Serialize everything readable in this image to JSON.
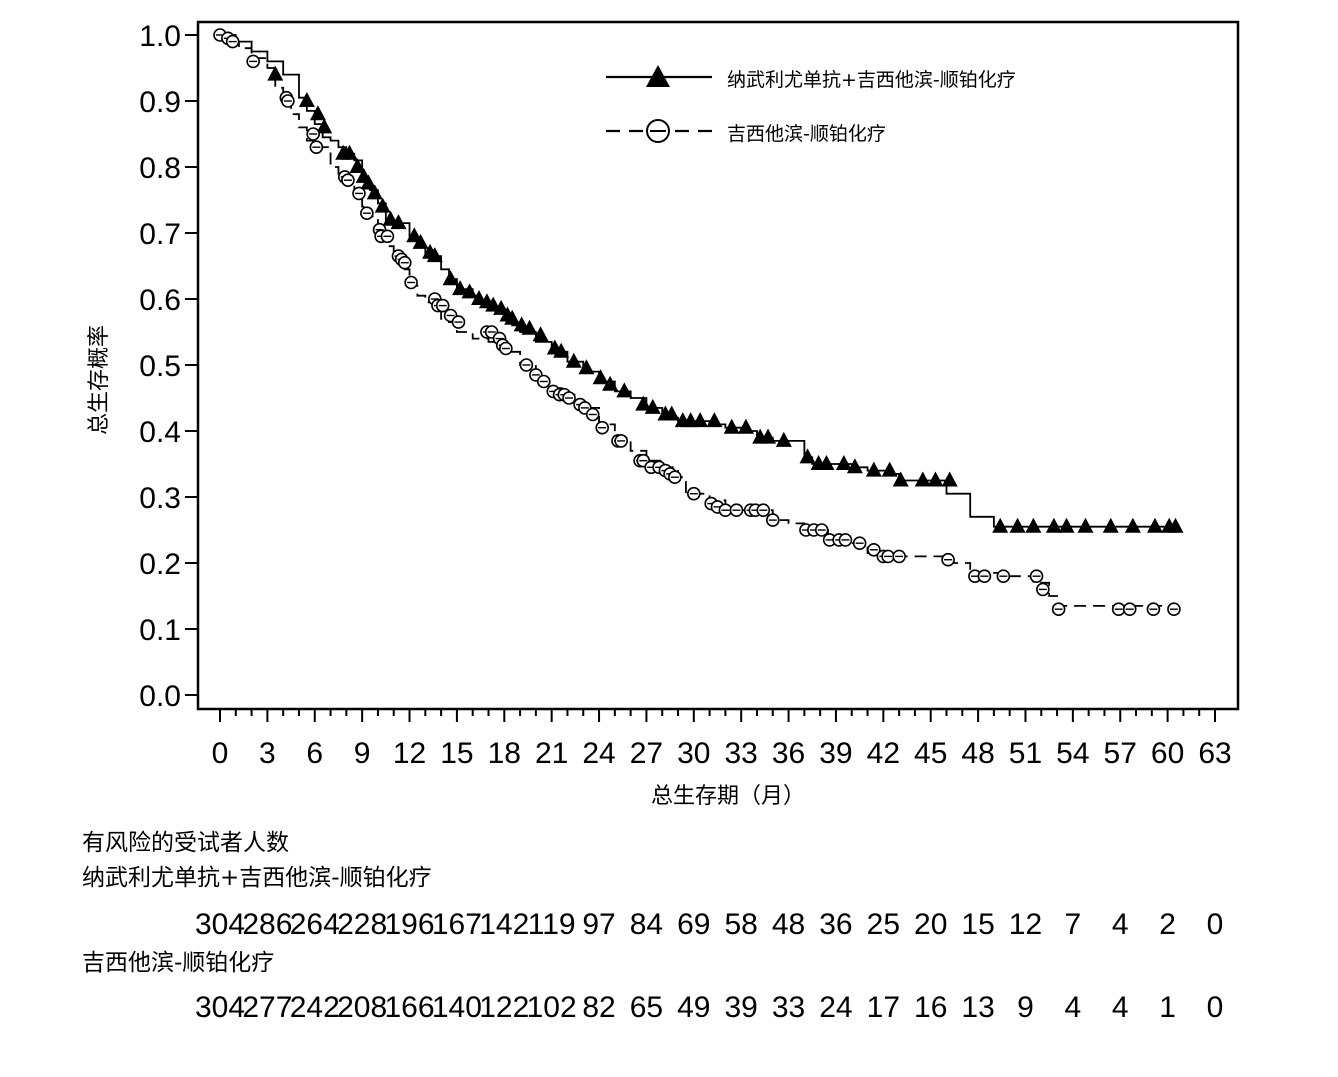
{
  "chart_data": {
    "type": "line",
    "subtype": "kaplan-meier",
    "xlabel": "总生存期（月）",
    "ylabel": "总生存概率",
    "xlim": [
      0,
      63
    ],
    "ylim": [
      0.0,
      1.0
    ],
    "x_ticks": [
      "0",
      "3",
      "6",
      "9",
      "12",
      "15",
      "18",
      "21",
      "24",
      "27",
      "30",
      "33",
      "36",
      "39",
      "42",
      "45",
      "48",
      "51",
      "54",
      "57",
      "60",
      "63"
    ],
    "y_ticks": [
      "0.0",
      "0.1",
      "0.2",
      "0.3",
      "0.4",
      "0.5",
      "0.6",
      "0.7",
      "0.8",
      "0.9",
      "1.0"
    ],
    "grid": false,
    "legend_position": "top-right",
    "series": [
      {
        "name": "纳武利尤单抗+吉西他滨-顺铂化疗",
        "line_style": "solid",
        "marker": "filled-triangle",
        "color": "#000000",
        "steps": [
          [
            0,
            1.0
          ],
          [
            1,
            0.99
          ],
          [
            2,
            0.975
          ],
          [
            3,
            0.96
          ],
          [
            4,
            0.94
          ],
          [
            5,
            0.905
          ],
          [
            5.5,
            0.885
          ],
          [
            6,
            0.865
          ],
          [
            6.5,
            0.845
          ],
          [
            7,
            0.84
          ],
          [
            7.5,
            0.83
          ],
          [
            8,
            0.82
          ],
          [
            8.5,
            0.81
          ],
          [
            9,
            0.78
          ],
          [
            9.5,
            0.765
          ],
          [
            10,
            0.745
          ],
          [
            10.5,
            0.72
          ],
          [
            11,
            0.715
          ],
          [
            12,
            0.69
          ],
          [
            12.5,
            0.68
          ],
          [
            13,
            0.665
          ],
          [
            14,
            0.645
          ],
          [
            14.5,
            0.63
          ],
          [
            15,
            0.615
          ],
          [
            16,
            0.605
          ],
          [
            16.5,
            0.595
          ],
          [
            17,
            0.585
          ],
          [
            18,
            0.57
          ],
          [
            18.5,
            0.56
          ],
          [
            19,
            0.55
          ],
          [
            20,
            0.535
          ],
          [
            21,
            0.52
          ],
          [
            22,
            0.505
          ],
          [
            23,
            0.49
          ],
          [
            24,
            0.475
          ],
          [
            25,
            0.46
          ],
          [
            26,
            0.45
          ],
          [
            27,
            0.435
          ],
          [
            28,
            0.42
          ],
          [
            29,
            0.415
          ],
          [
            31,
            0.41
          ],
          [
            32,
            0.405
          ],
          [
            33,
            0.4
          ],
          [
            34,
            0.39
          ],
          [
            35,
            0.385
          ],
          [
            37,
            0.36
          ],
          [
            37.5,
            0.35
          ],
          [
            40,
            0.345
          ],
          [
            41,
            0.34
          ],
          [
            42.5,
            0.335
          ],
          [
            43,
            0.325
          ],
          [
            46,
            0.305
          ],
          [
            47.5,
            0.27
          ],
          [
            49,
            0.255
          ],
          [
            60.5,
            0.255
          ]
        ],
        "censored": [
          [
            3.5,
            0.94
          ],
          [
            5.5,
            0.9
          ],
          [
            6.2,
            0.88
          ],
          [
            6.6,
            0.86
          ],
          [
            7.8,
            0.82
          ],
          [
            8.2,
            0.82
          ],
          [
            8.7,
            0.8
          ],
          [
            9.1,
            0.785
          ],
          [
            9.4,
            0.775
          ],
          [
            9.8,
            0.76
          ],
          [
            10.3,
            0.74
          ],
          [
            10.8,
            0.72
          ],
          [
            11.3,
            0.715
          ],
          [
            12.3,
            0.695
          ],
          [
            12.7,
            0.685
          ],
          [
            13.3,
            0.67
          ],
          [
            13.6,
            0.665
          ],
          [
            14.6,
            0.63
          ],
          [
            15.2,
            0.615
          ],
          [
            15.8,
            0.61
          ],
          [
            16.4,
            0.6
          ],
          [
            16.9,
            0.595
          ],
          [
            17.3,
            0.59
          ],
          [
            17.8,
            0.585
          ],
          [
            18.2,
            0.575
          ],
          [
            18.5,
            0.57
          ],
          [
            19.1,
            0.56
          ],
          [
            19.6,
            0.555
          ],
          [
            20.3,
            0.545
          ],
          [
            21.2,
            0.525
          ],
          [
            21.6,
            0.52
          ],
          [
            22.4,
            0.505
          ],
          [
            23.2,
            0.495
          ],
          [
            24.1,
            0.48
          ],
          [
            24.7,
            0.47
          ],
          [
            25.6,
            0.46
          ],
          [
            26.8,
            0.44
          ],
          [
            27.4,
            0.435
          ],
          [
            28.2,
            0.425
          ],
          [
            28.6,
            0.425
          ],
          [
            29.3,
            0.415
          ],
          [
            29.8,
            0.415
          ],
          [
            30.4,
            0.415
          ],
          [
            31.3,
            0.415
          ],
          [
            32.4,
            0.405
          ],
          [
            33.3,
            0.405
          ],
          [
            34.2,
            0.39
          ],
          [
            34.7,
            0.39
          ],
          [
            35.7,
            0.385
          ],
          [
            37.2,
            0.36
          ],
          [
            37.9,
            0.35
          ],
          [
            38.4,
            0.35
          ],
          [
            39.5,
            0.35
          ],
          [
            40.2,
            0.345
          ],
          [
            41.4,
            0.34
          ],
          [
            42.4,
            0.34
          ],
          [
            43.1,
            0.325
          ],
          [
            44.5,
            0.325
          ],
          [
            45.3,
            0.325
          ],
          [
            46.2,
            0.325
          ],
          [
            49.4,
            0.255
          ],
          [
            50.5,
            0.255
          ],
          [
            51.5,
            0.255
          ],
          [
            52.8,
            0.255
          ],
          [
            53.6,
            0.255
          ],
          [
            54.8,
            0.255
          ],
          [
            56.4,
            0.255
          ],
          [
            57.8,
            0.255
          ],
          [
            59.2,
            0.255
          ],
          [
            60.1,
            0.255
          ],
          [
            60.5,
            0.255
          ]
        ]
      },
      {
        "name": "吉西他滨-顺铂化疗",
        "line_style": "dashed",
        "marker": "open-circle",
        "color": "#000000",
        "steps": [
          [
            0,
            1.0
          ],
          [
            0.6,
            0.99
          ],
          [
            1.2,
            0.98
          ],
          [
            2,
            0.965
          ],
          [
            3,
            0.95
          ],
          [
            3.5,
            0.92
          ],
          [
            4,
            0.905
          ],
          [
            4.5,
            0.88
          ],
          [
            5,
            0.86
          ],
          [
            5.5,
            0.84
          ],
          [
            6,
            0.83
          ],
          [
            7,
            0.8
          ],
          [
            7.5,
            0.79
          ],
          [
            8,
            0.78
          ],
          [
            8.5,
            0.76
          ],
          [
            9,
            0.74
          ],
          [
            9.5,
            0.725
          ],
          [
            10,
            0.7
          ],
          [
            10.5,
            0.68
          ],
          [
            11,
            0.66
          ],
          [
            11.5,
            0.645
          ],
          [
            12,
            0.62
          ],
          [
            12.5,
            0.605
          ],
          [
            13,
            0.595
          ],
          [
            13.5,
            0.585
          ],
          [
            14,
            0.57
          ],
          [
            14.5,
            0.565
          ],
          [
            15,
            0.55
          ],
          [
            16,
            0.54
          ],
          [
            17,
            0.535
          ],
          [
            18,
            0.52
          ],
          [
            19,
            0.5
          ],
          [
            20,
            0.49
          ],
          [
            20.5,
            0.475
          ],
          [
            21,
            0.465
          ],
          [
            22,
            0.455
          ],
          [
            22.5,
            0.44
          ],
          [
            23,
            0.435
          ],
          [
            24,
            0.41
          ],
          [
            25,
            0.39
          ],
          [
            26,
            0.37
          ],
          [
            27,
            0.355
          ],
          [
            28,
            0.345
          ],
          [
            29,
            0.33
          ],
          [
            29.5,
            0.305
          ],
          [
            31,
            0.295
          ],
          [
            32,
            0.285
          ],
          [
            33,
            0.28
          ],
          [
            35,
            0.265
          ],
          [
            36,
            0.26
          ],
          [
            37,
            0.25
          ],
          [
            38.5,
            0.235
          ],
          [
            39,
            0.23
          ],
          [
            41,
            0.215
          ],
          [
            42,
            0.21
          ],
          [
            44,
            0.21
          ],
          [
            46,
            0.2
          ],
          [
            47.5,
            0.185
          ],
          [
            49.5,
            0.18
          ],
          [
            51.5,
            0.17
          ],
          [
            52.5,
            0.15
          ],
          [
            53,
            0.135
          ],
          [
            60.5,
            0.135
          ]
        ],
        "censored": [
          [
            0,
            1.0
          ],
          [
            0.5,
            0.995
          ],
          [
            0.8,
            0.99
          ],
          [
            2.1,
            0.96
          ],
          [
            4.2,
            0.905
          ],
          [
            4.3,
            0.9
          ],
          [
            5.9,
            0.85
          ],
          [
            6.1,
            0.83
          ],
          [
            7.9,
            0.785
          ],
          [
            8.1,
            0.78
          ],
          [
            8.8,
            0.76
          ],
          [
            9.3,
            0.73
          ],
          [
            10.1,
            0.705
          ],
          [
            10.2,
            0.695
          ],
          [
            10.6,
            0.695
          ],
          [
            11.3,
            0.665
          ],
          [
            11.5,
            0.66
          ],
          [
            11.7,
            0.655
          ],
          [
            12.1,
            0.625
          ],
          [
            13.6,
            0.6
          ],
          [
            13.8,
            0.59
          ],
          [
            14.1,
            0.59
          ],
          [
            14.6,
            0.575
          ],
          [
            15.1,
            0.565
          ],
          [
            16.9,
            0.55
          ],
          [
            17.2,
            0.55
          ],
          [
            17.7,
            0.54
          ],
          [
            17.9,
            0.53
          ],
          [
            18.1,
            0.525
          ],
          [
            19.4,
            0.5
          ],
          [
            20.0,
            0.485
          ],
          [
            20.5,
            0.475
          ],
          [
            21.1,
            0.46
          ],
          [
            21.5,
            0.455
          ],
          [
            21.8,
            0.455
          ],
          [
            22.1,
            0.45
          ],
          [
            22.8,
            0.44
          ],
          [
            23.1,
            0.435
          ],
          [
            23.6,
            0.425
          ],
          [
            24.2,
            0.405
          ],
          [
            25.2,
            0.385
          ],
          [
            25.4,
            0.385
          ],
          [
            26.6,
            0.355
          ],
          [
            26.8,
            0.355
          ],
          [
            27.3,
            0.345
          ],
          [
            27.8,
            0.345
          ],
          [
            28.2,
            0.34
          ],
          [
            28.5,
            0.335
          ],
          [
            28.8,
            0.33
          ],
          [
            30.0,
            0.305
          ],
          [
            31.1,
            0.29
          ],
          [
            31.5,
            0.285
          ],
          [
            32.0,
            0.28
          ],
          [
            32.7,
            0.28
          ],
          [
            33.6,
            0.28
          ],
          [
            33.9,
            0.28
          ],
          [
            34.4,
            0.28
          ],
          [
            35.0,
            0.265
          ],
          [
            37.1,
            0.25
          ],
          [
            37.6,
            0.25
          ],
          [
            38.1,
            0.25
          ],
          [
            38.6,
            0.235
          ],
          [
            39.2,
            0.235
          ],
          [
            39.6,
            0.235
          ],
          [
            40.5,
            0.23
          ],
          [
            41.4,
            0.22
          ],
          [
            42.0,
            0.21
          ],
          [
            42.3,
            0.21
          ],
          [
            43.0,
            0.21
          ],
          [
            46.1,
            0.205
          ],
          [
            47.8,
            0.18
          ],
          [
            48.4,
            0.18
          ],
          [
            49.6,
            0.18
          ],
          [
            51.7,
            0.18
          ],
          [
            52.1,
            0.16
          ],
          [
            53.1,
            0.13
          ],
          [
            56.9,
            0.13
          ],
          [
            57.6,
            0.13
          ],
          [
            59.1,
            0.13
          ],
          [
            60.4,
            0.13
          ]
        ]
      }
    ]
  },
  "risk_table": {
    "title": "有风险的受试者人数",
    "times": [
      0,
      3,
      6,
      9,
      12,
      15,
      18,
      21,
      24,
      27,
      30,
      33,
      36,
      39,
      42,
      45,
      48,
      51,
      54,
      57,
      60,
      63
    ],
    "groups": [
      {
        "label": "纳武利尤单抗+吉西他滨-顺铂化疗",
        "counts": [
          "304",
          "286",
          "264",
          "228",
          "196",
          "167",
          "142",
          "119",
          "97",
          "84",
          "69",
          "58",
          "48",
          "36",
          "25",
          "20",
          "15",
          "12",
          "7",
          "4",
          "2",
          "0"
        ]
      },
      {
        "label": "吉西他滨-顺铂化疗",
        "counts": [
          "304",
          "277",
          "242",
          "208",
          "166",
          "140",
          "122",
          "102",
          "82",
          "65",
          "49",
          "39",
          "33",
          "24",
          "17",
          "16",
          "13",
          "9",
          "4",
          "4",
          "1",
          "0"
        ]
      }
    ]
  }
}
